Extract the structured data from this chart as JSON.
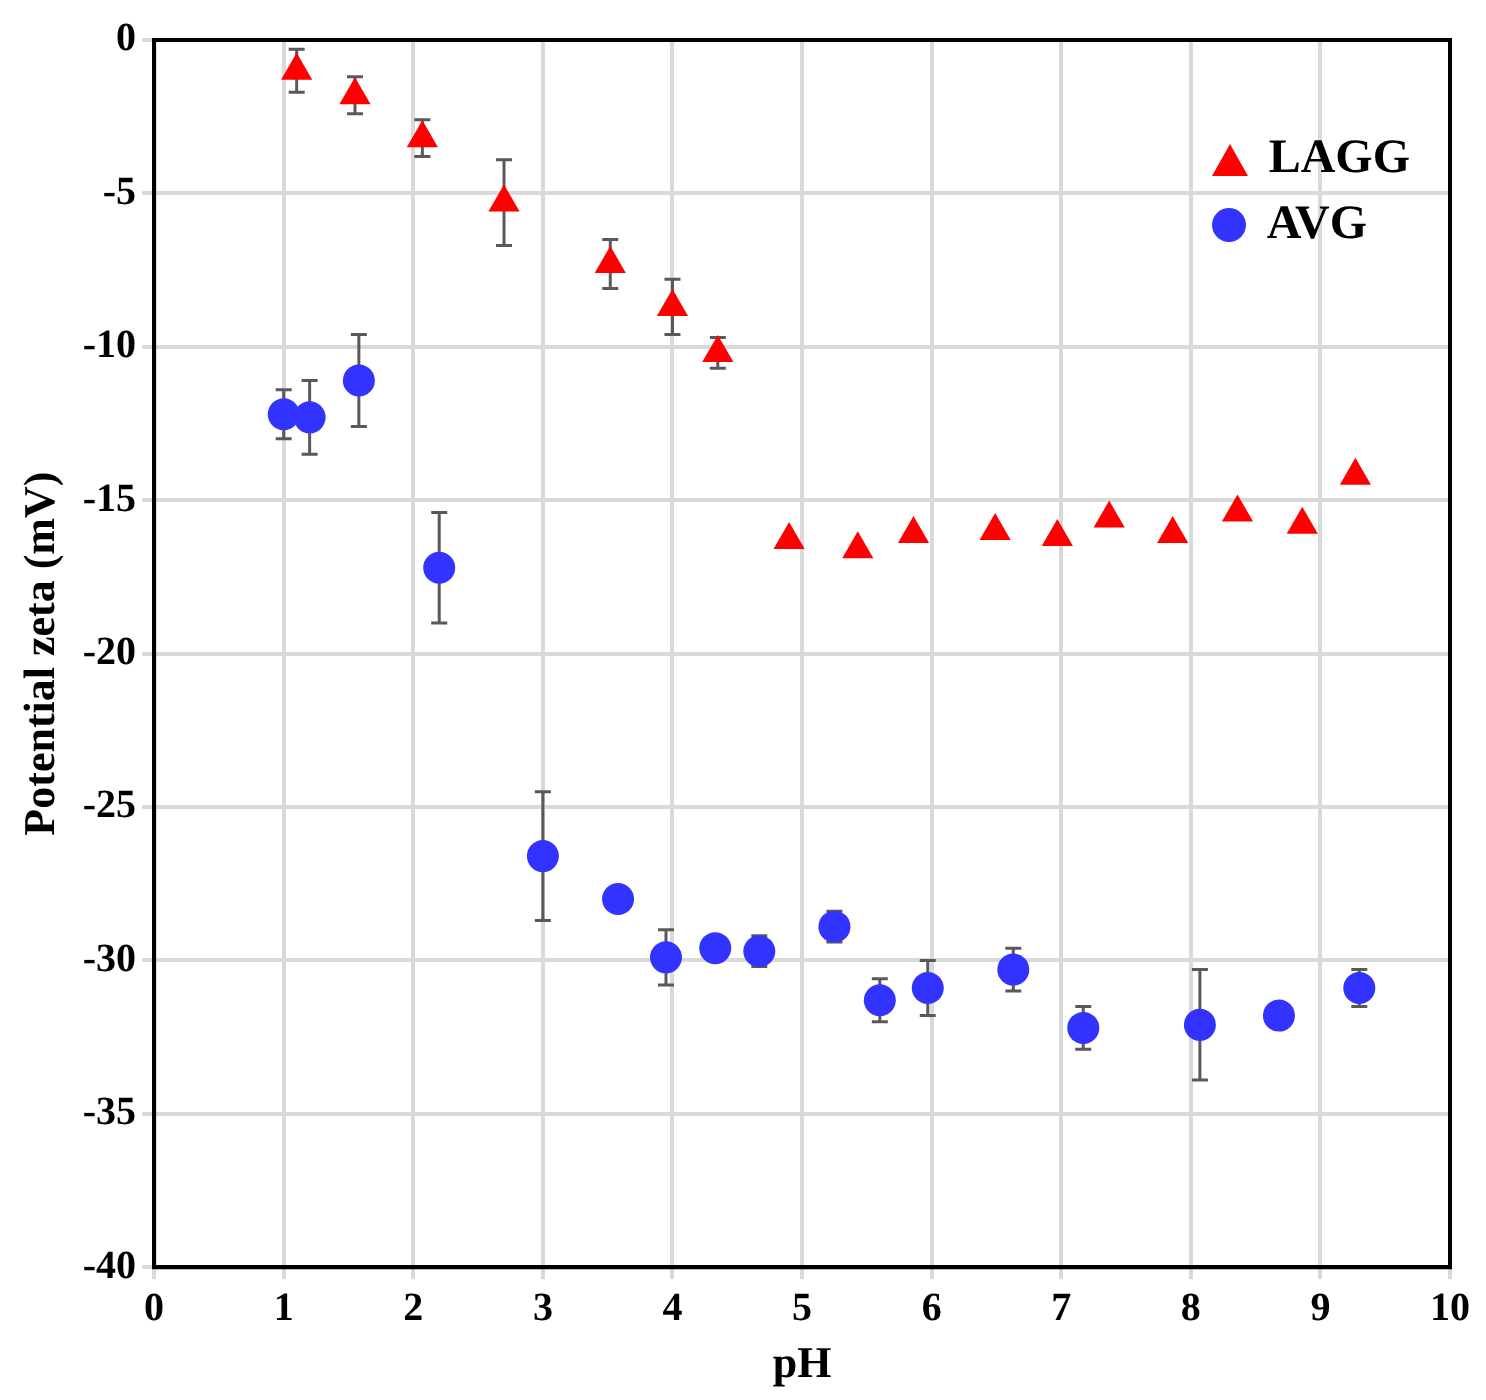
{
  "chart_data": {
    "type": "scatter",
    "xlabel": "pH",
    "ylabel": "Potential zeta (mV)",
    "xlim": [
      0,
      10
    ],
    "xticks": [
      0,
      1,
      2,
      3,
      4,
      5,
      6,
      7,
      8,
      9,
      10
    ],
    "ylim": [
      -40,
      0
    ],
    "yticks": [
      -40,
      -35,
      -30,
      -25,
      -20,
      -15,
      -10,
      -5,
      0
    ],
    "grid": true,
    "legend": "top right",
    "series": [
      {
        "name": "LAGG",
        "color": "#ff0000",
        "marker": "triangle",
        "x": [
          1.1,
          1.55,
          2.07,
          2.7,
          3.52,
          4.0,
          4.35,
          4.9,
          5.43,
          5.86,
          6.49,
          6.97,
          7.37,
          7.86,
          8.36,
          8.86,
          9.27
        ],
        "values": [
          -1.0,
          -1.8,
          -3.2,
          -5.3,
          -7.3,
          -8.7,
          -10.2,
          -16.3,
          -16.6,
          -16.1,
          -16.0,
          -16.2,
          -15.6,
          -16.1,
          -15.4,
          -15.8,
          -14.2
        ],
        "errors": [
          0.7,
          0.6,
          0.6,
          1.4,
          0.8,
          0.9,
          0.5,
          null,
          null,
          null,
          null,
          null,
          null,
          null,
          null,
          null,
          null
        ]
      },
      {
        "name": "AVG",
        "color": "#3333ff",
        "marker": "circle",
        "x": [
          1.0,
          1.2,
          1.58,
          2.2,
          3.0,
          3.58,
          3.95,
          4.33,
          4.67,
          5.25,
          5.6,
          5.97,
          6.63,
          7.17,
          8.07,
          8.68,
          9.3
        ],
        "values": [
          -12.2,
          -12.3,
          -11.1,
          -17.2,
          -26.6,
          -28.0,
          -29.9,
          -29.6,
          -29.7,
          -28.9,
          -31.3,
          -30.9,
          -30.3,
          -32.2,
          -32.1,
          -31.8,
          -30.9
        ],
        "errors": [
          0.8,
          1.2,
          1.5,
          1.8,
          2.1,
          null,
          0.9,
          null,
          0.5,
          0.5,
          0.7,
          0.9,
          0.7,
          0.7,
          1.8,
          null,
          0.6
        ]
      }
    ]
  }
}
